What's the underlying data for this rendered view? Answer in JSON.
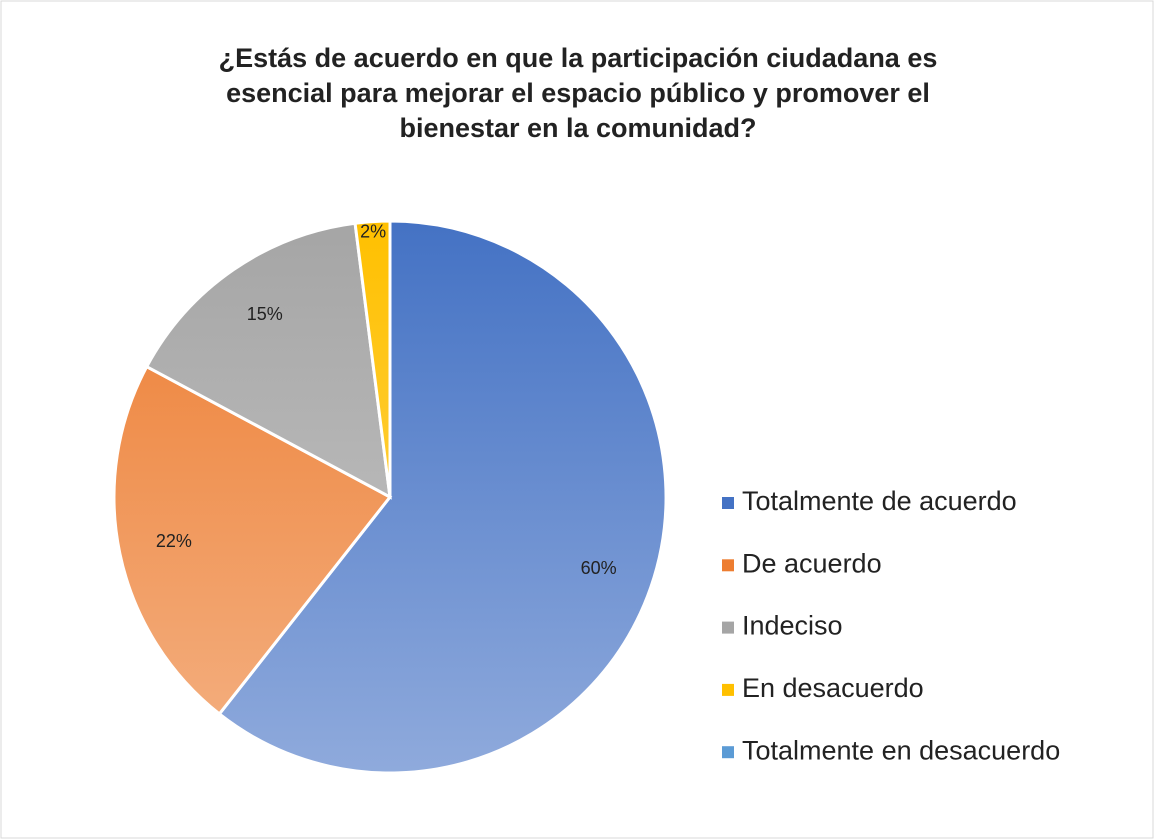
{
  "chart_data": {
    "type": "pie",
    "title": [
      "¿Estás de acuerdo en que la participación ciudadana es",
      "esencial para mejorar el espacio público y promover el",
      "bienestar en la comunidad?"
    ],
    "categories": [
      "Totalmente de acuerdo",
      "De acuerdo",
      "Indeciso",
      "En desacuerdo",
      "Totalmente en desacuerdo"
    ],
    "values": [
      60,
      22,
      15,
      2,
      0
    ],
    "value_labels": [
      "60%",
      "22%",
      "15%",
      "2%",
      null
    ],
    "colors": [
      "#4472c4",
      "#ed7d31",
      "#a5a5a5",
      "#ffc000",
      "#5b9bd5"
    ],
    "legend": "right"
  }
}
